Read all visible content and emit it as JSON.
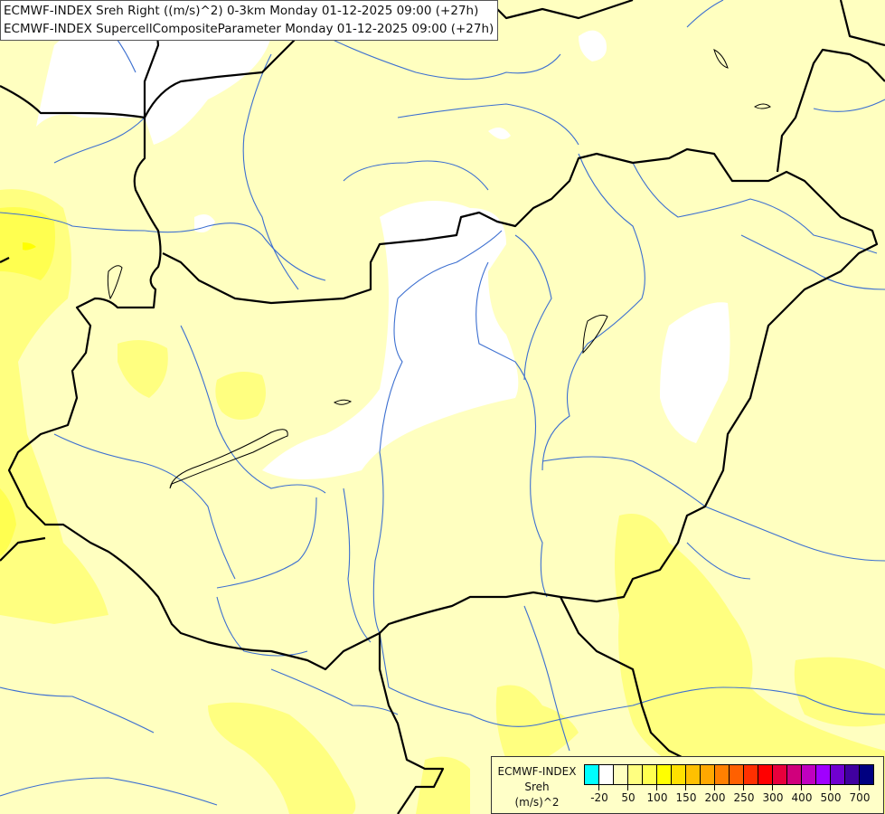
{
  "title": {
    "line1": "ECMWF-INDEX Sreh Right ((m/s)^2) 0-3km Monday 01-12-2025 09:00 (+27h)",
    "line2": "ECMWF-INDEX SupercellCompositeParameter Monday 01-12-2025 09:00 (+27h)"
  },
  "map": {
    "field_colors": {
      "background": "#ffffc0",
      "white": "#ffffff",
      "light": "#ffff80",
      "medium": "#ffff50",
      "strong": "#ffff00"
    },
    "border_color": "#000000",
    "river_color": "#3c6fd0"
  },
  "legend": {
    "line1": "ECMWF-INDEX",
    "line2": "Sreh",
    "line3": "(m/s)^2",
    "colors": [
      "#00ffff",
      "#ffffff",
      "#ffffc0",
      "#ffff80",
      "#ffff50",
      "#ffff00",
      "#ffe000",
      "#ffc000",
      "#ffa800",
      "#ff8000",
      "#ff6000",
      "#ff3000",
      "#ff0000",
      "#e8003c",
      "#d0007c",
      "#c000c0",
      "#a000ff",
      "#7000d0",
      "#4000a0",
      "#000080"
    ],
    "ticks": [
      "-20",
      "50",
      "100",
      "150",
      "200",
      "250",
      "300",
      "400",
      "500",
      "700"
    ]
  }
}
